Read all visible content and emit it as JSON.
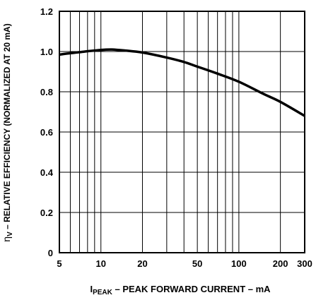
{
  "chart_data": {
    "type": "line",
    "x_scale": "log",
    "xlim": [
      5,
      300
    ],
    "ylim": [
      0,
      1.2
    ],
    "xticks": [
      5,
      10,
      20,
      50,
      100,
      200,
      300
    ],
    "xtick_labels": [
      "5",
      "10",
      "20",
      "50",
      "100",
      "200",
      "300"
    ],
    "yticks": [
      0,
      0.2,
      0.4,
      0.6,
      0.8,
      1.0,
      1.2
    ],
    "ytick_labels": [
      "0",
      "0.2",
      "0.4",
      "0.6",
      "0.8",
      "1.0",
      "1.2"
    ],
    "x_gridlines": [
      5,
      6,
      7,
      8,
      9,
      10,
      20,
      30,
      40,
      50,
      60,
      70,
      80,
      90,
      100,
      200,
      300
    ],
    "y_gridlines": [
      0.2,
      0.4,
      0.6,
      0.8,
      1.0
    ],
    "grid": true,
    "xlabel": {
      "symbol": "I",
      "subscript": "PEAK",
      "text": " – PEAK FORWARD CURRENT – mA"
    },
    "ylabel": {
      "symbol": "η",
      "subscript": "V",
      "text": " – RELATIVE EFFICIENCY (NORMALIZED AT 20 mA)"
    },
    "series": [
      {
        "line_color": "#000000",
        "x": [
          5,
          7,
          10,
          12,
          15,
          20,
          30,
          40,
          50,
          70,
          100,
          150,
          200,
          300
        ],
        "y": [
          0.985,
          0.997,
          1.008,
          1.01,
          1.005,
          0.995,
          0.97,
          0.948,
          0.925,
          0.89,
          0.85,
          0.79,
          0.75,
          0.68
        ]
      }
    ]
  }
}
